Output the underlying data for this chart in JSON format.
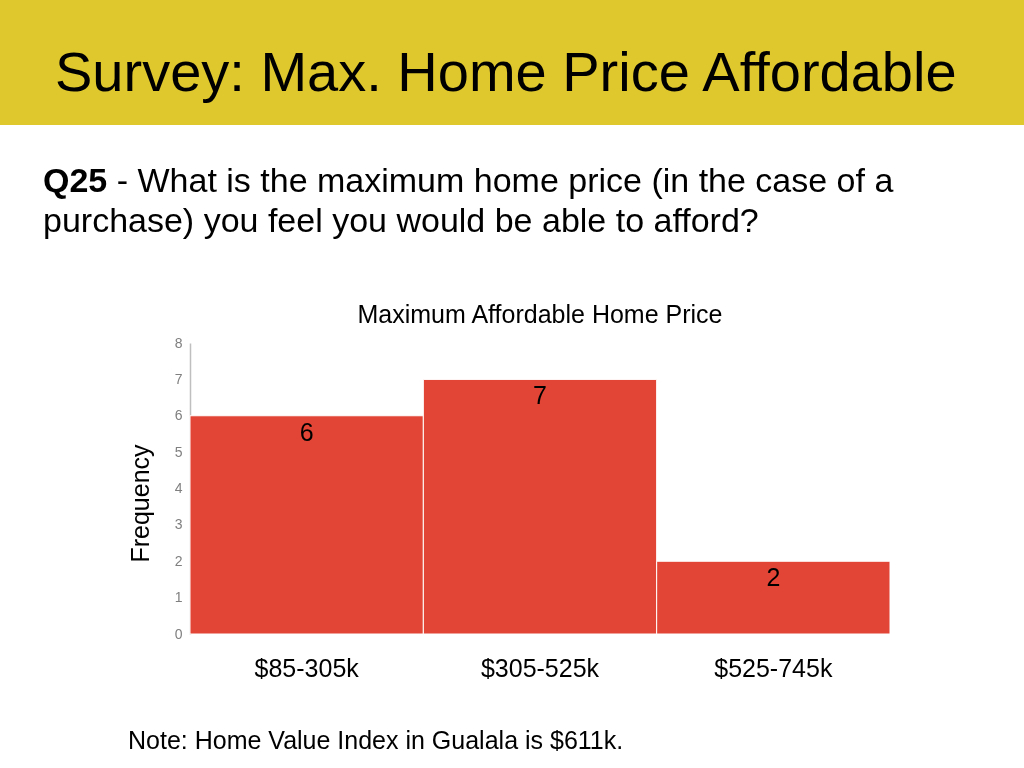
{
  "chart_data": {
    "type": "bar",
    "title": "Survey: Max. Home Price Affordable",
    "subtitle": "Q25 - What is the maximum home price (in the case of a purchase) you feel you would be able to afford?",
    "annotations": [
      "Maximum Affordable Home Price",
      "Note: Home Value Index in Gualala is $611k."
    ],
    "ylabel": "Frequency",
    "categories": [
      "$85-305k",
      "$305-525k",
      "$525-745k"
    ],
    "values": [
      6,
      7,
      2
    ],
    "color": "#e24535",
    "ylim": [
      0,
      8
    ],
    "yticks": [
      0,
      1,
      2,
      3,
      4,
      5,
      6,
      7,
      8
    ],
    "data_labels": true,
    "grid": false
  }
}
